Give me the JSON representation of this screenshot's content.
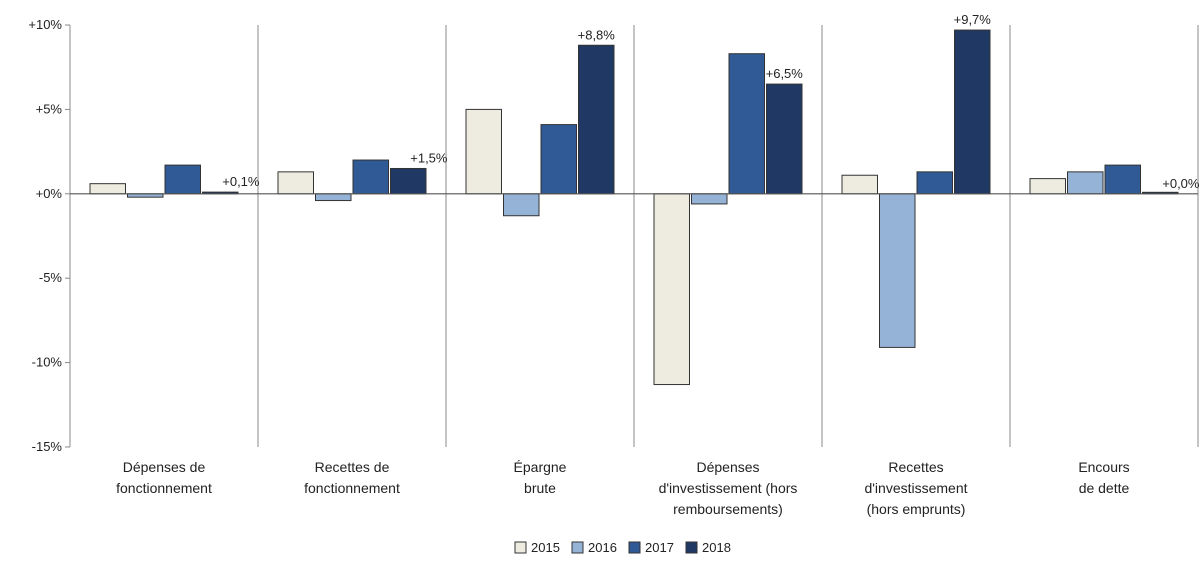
{
  "chart_data": {
    "type": "bar",
    "categories": [
      [
        "Dépenses de",
        "fonctionnement"
      ],
      [
        "Recettes de",
        "fonctionnement"
      ],
      [
        "Épargne",
        "brute"
      ],
      [
        "Dépenses",
        "d'investissement (hors",
        "remboursements)"
      ],
      [
        "Recettes",
        "d'investissement",
        "(hors emprunts)"
      ],
      [
        "Encours",
        "de dette"
      ]
    ],
    "series": [
      {
        "name": "2015",
        "color": "#eeebe0",
        "values": [
          0.6,
          1.3,
          5.0,
          -11.3,
          1.1,
          0.9
        ]
      },
      {
        "name": "2016",
        "color": "#95b3d7",
        "values": [
          -0.2,
          -0.4,
          -1.3,
          -0.6,
          -9.1,
          1.3
        ]
      },
      {
        "name": "2017",
        "color": "#2f5a96",
        "values": [
          1.7,
          2.0,
          4.1,
          8.3,
          1.3,
          1.7
        ]
      },
      {
        "name": "2018",
        "color": "#1f3864",
        "values": [
          0.1,
          1.5,
          8.8,
          6.5,
          9.7,
          0.0
        ]
      }
    ],
    "data_labels": [
      "+0,1%",
      "+1,5%",
      "+8,8%",
      "+6,5%",
      "+9,7%",
      "+0,0%"
    ],
    "ylim": [
      -15,
      10
    ],
    "yticks": [
      10,
      5,
      0,
      -5,
      -10,
      -15
    ],
    "ytick_labels": [
      "+10%",
      "+5%",
      "+0%",
      "-5%",
      "-10%",
      "-15%"
    ],
    "legend_position": "bottom-center",
    "title": "",
    "xlabel": "",
    "ylabel": ""
  }
}
